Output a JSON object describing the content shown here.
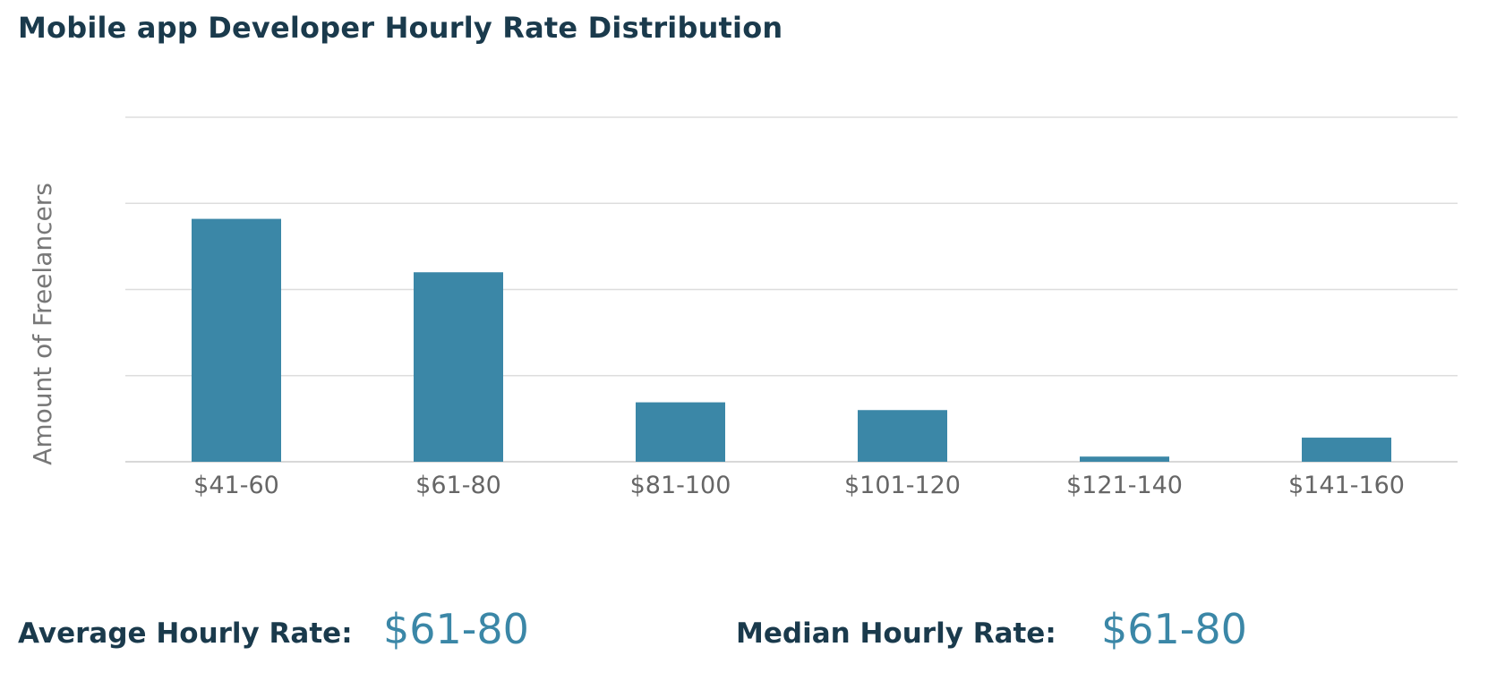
{
  "title": "Mobile app Developer Hourly Rate Distribution",
  "chart_data": {
    "type": "bar",
    "categories": [
      "$41-60",
      "$61-80",
      "$81-100",
      "$101-120",
      "$121-140",
      "$141-160"
    ],
    "values": [
      28.2,
      22.0,
      6.9,
      6.0,
      0.6,
      2.8
    ],
    "ylabel": "Amount of Freelancers",
    "xlabel": "",
    "ylim": [
      0,
      40
    ],
    "grid": true,
    "y_tick_labels_shown": false,
    "bar_color": "#3b87a7"
  },
  "stats": {
    "average_label": "Average Hourly Rate:",
    "average_value": "$61-80",
    "median_label": "Median Hourly Rate:",
    "median_value": "$61-80"
  },
  "colors": {
    "heading": "#1a3a4c",
    "accent": "#3b87a7",
    "grid": "#dddddd",
    "tick_text": "#666666"
  }
}
